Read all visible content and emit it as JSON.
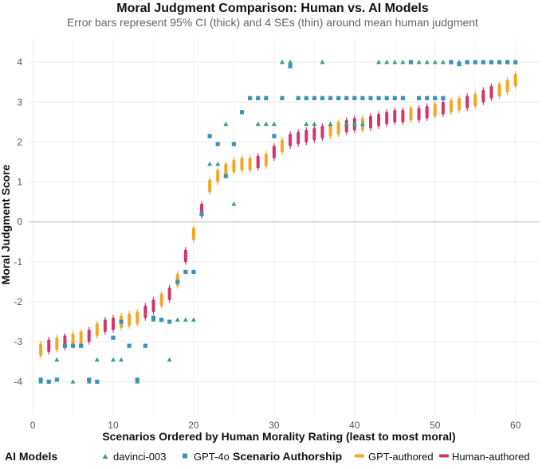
{
  "chart_data": {
    "type": "scatter",
    "title": "Moral Judgment Comparison: Human vs. AI Models",
    "subtitle": "Error bars represent 95% CI (thick) and 4 SEs (thin) around mean human judgment",
    "xlabel": "Scenarios Ordered by Human Morality Rating (least to most moral)",
    "ylabel": "Moral Judgment Score",
    "xlim": [
      -0.5,
      63
    ],
    "ylim": [
      -4.85,
      4.6
    ],
    "x_ticks": [
      0,
      10,
      20,
      30,
      40,
      50,
      60
    ],
    "y_ticks": [
      -4,
      -3,
      -2,
      -1,
      0,
      1,
      2,
      3,
      4
    ],
    "grid": true,
    "colors": {
      "davinci": "#3a9e8c",
      "gpt4o": "#3a92b8",
      "gpt_authored": "#f5a623",
      "human_authored": "#d6336c",
      "zero_line": "#bdbdbd",
      "grid": "#ececec"
    },
    "legend": {
      "ai_title": "AI Models",
      "ai_items": [
        "davinci-003",
        "GPT-4o"
      ],
      "auth_title": "Scenario Authorship",
      "auth_items": [
        "GPT-authored",
        "Human-authored"
      ]
    },
    "human_means": {
      "x": [
        1,
        2,
        3,
        4,
        5,
        6,
        7,
        8,
        9,
        10,
        11,
        12,
        13,
        14,
        15,
        16,
        17,
        18,
        19,
        20,
        21,
        22,
        23,
        24,
        25,
        26,
        27,
        28,
        29,
        30,
        31,
        32,
        33,
        34,
        35,
        36,
        37,
        38,
        39,
        40,
        41,
        42,
        43,
        44,
        45,
        46,
        47,
        48,
        49,
        50,
        51,
        52,
        53,
        54,
        55,
        56,
        57,
        58,
        59,
        60
      ],
      "y": [
        -3.2,
        -3.1,
        -3.05,
        -3.0,
        -2.95,
        -2.9,
        -2.85,
        -2.7,
        -2.6,
        -2.55,
        -2.5,
        -2.45,
        -2.4,
        -2.25,
        -2.1,
        -1.95,
        -1.8,
        -1.45,
        -0.85,
        -0.3,
        0.3,
        0.9,
        1.15,
        1.3,
        1.4,
        1.45,
        1.45,
        1.5,
        1.55,
        1.75,
        1.9,
        2.05,
        2.1,
        2.15,
        2.2,
        2.25,
        2.3,
        2.35,
        2.4,
        2.45,
        2.45,
        2.5,
        2.55,
        2.6,
        2.65,
        2.65,
        2.7,
        2.7,
        2.75,
        2.8,
        2.85,
        2.9,
        2.95,
        3.0,
        3.05,
        3.15,
        3.25,
        3.3,
        3.4,
        3.55
      ],
      "authorship": [
        "G",
        "H",
        "G",
        "H",
        "G",
        "G",
        "H",
        "G",
        "H",
        "H",
        "G",
        "G",
        "G",
        "H",
        "H",
        "G",
        "H",
        "G",
        "H",
        "G",
        "H",
        "G",
        "G",
        "G",
        "G",
        "G",
        "G",
        "H",
        "G",
        "H",
        "G",
        "H",
        "H",
        "H",
        "H",
        "H",
        "G",
        "G",
        "H",
        "H",
        "G",
        "H",
        "H",
        "H",
        "H",
        "H",
        "G",
        "H",
        "H",
        "G",
        "H",
        "G",
        "G",
        "H",
        "G",
        "H",
        "H",
        "G",
        "G",
        "G"
      ]
    },
    "davinci_003": {
      "x": [
        1,
        3,
        5,
        7,
        8,
        10,
        11,
        13,
        15,
        16,
        17,
        18,
        19,
        20,
        22,
        23,
        24,
        25,
        28,
        29,
        30,
        31,
        32,
        34,
        35,
        36,
        37,
        39,
        40,
        41,
        43,
        44,
        45,
        46,
        47,
        48,
        49,
        50,
        51,
        52,
        53,
        54,
        55,
        56,
        57,
        58,
        59,
        60
      ],
      "y": [
        -4.0,
        -3.45,
        -4.0,
        -4.0,
        -3.45,
        -3.45,
        -3.45,
        -4.0,
        -2.45,
        -2.45,
        -3.45,
        -2.45,
        -2.45,
        -2.45,
        1.45,
        1.45,
        2.45,
        0.45,
        2.45,
        2.45,
        2.45,
        4.0,
        4.0,
        2.45,
        2.45,
        4.0,
        2.45,
        2.45,
        2.45,
        2.45,
        4.0,
        4.0,
        4.0,
        4.0,
        4.0,
        4.0,
        4.0,
        4.0,
        4.0,
        4.0,
        4.0,
        4.0,
        4.0,
        4.0,
        4.0,
        4.0,
        4.0,
        4.0
      ]
    },
    "gpt_4o": {
      "x": [
        1,
        2,
        3,
        4,
        5,
        6,
        7,
        8,
        10,
        11,
        12,
        13,
        14,
        15,
        16,
        17,
        18,
        19,
        20,
        21,
        22,
        23,
        24,
        25,
        26,
        27,
        28,
        29,
        30,
        31,
        32,
        33,
        34,
        35,
        36,
        37,
        38,
        39,
        40,
        41,
        42,
        43,
        44,
        45,
        46,
        47,
        48,
        49,
        50,
        51,
        52,
        53,
        54,
        55,
        56,
        57,
        58,
        59,
        60
      ],
      "y": [
        -3.95,
        -4.0,
        -3.95,
        -3.1,
        -3.1,
        -3.1,
        -3.95,
        -4.0,
        -2.9,
        -2.5,
        -3.1,
        -3.95,
        -3.1,
        -2.4,
        -2.45,
        -2.5,
        -1.5,
        -1.25,
        -1.25,
        0.2,
        2.15,
        1.95,
        1.15,
        1.95,
        2.75,
        3.1,
        3.1,
        3.1,
        2.15,
        3.1,
        3.9,
        3.1,
        3.1,
        3.1,
        3.1,
        3.1,
        3.1,
        3.1,
        3.1,
        3.1,
        3.1,
        3.1,
        3.1,
        3.1,
        3.1,
        4.0,
        3.1,
        3.1,
        3.1,
        3.1,
        4.0,
        3.95,
        4.0,
        4.0,
        4.0,
        4.0,
        4.0,
        4.0,
        4.0
      ]
    }
  }
}
